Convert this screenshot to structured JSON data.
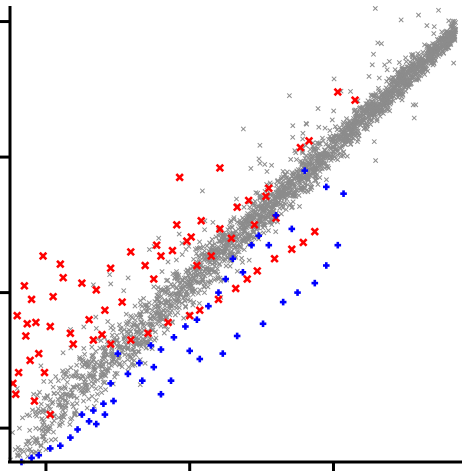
{
  "chart_data": {
    "type": "scatter",
    "title": "",
    "xlabel": "",
    "ylabel": "",
    "xlim": [
      0.0,
      3.13
    ],
    "ylim": [
      0.0,
      3.35
    ],
    "x_ticks": [
      0.25,
      1.25,
      2.25
    ],
    "y_ticks": [
      0.25,
      1.25,
      2.25,
      3.25
    ],
    "grid": false,
    "legend": "none",
    "colors": {
      "background": "#8c8c8c",
      "up": "#ff0000",
      "down": "#0000ff",
      "axis": "#000000"
    },
    "background_cloud": {
      "trend_slope": 1.0,
      "trend_intercept": 0.08,
      "x_range": [
        0.0,
        3.1
      ],
      "approx_points": 2600
    },
    "series": [
      {
        "marker": "x",
        "color": "#ff0000",
        "points": [
          [
            2.28,
            2.73
          ],
          [
            2.4,
            2.67
          ],
          [
            2.02,
            2.32
          ],
          [
            2.08,
            2.37
          ],
          [
            1.46,
            2.17
          ],
          [
            1.18,
            2.1
          ],
          [
            1.8,
            2.02
          ],
          [
            1.78,
            1.96
          ],
          [
            1.66,
            1.93
          ],
          [
            1.58,
            1.88
          ],
          [
            1.46,
            1.72
          ],
          [
            1.33,
            1.78
          ],
          [
            1.26,
            1.66
          ],
          [
            1.23,
            1.63
          ],
          [
            1.16,
            1.75
          ],
          [
            1.13,
            1.56
          ],
          [
            1.02,
            1.6
          ],
          [
            1.05,
            1.52
          ],
          [
            0.94,
            1.45
          ],
          [
            0.84,
            1.55
          ],
          [
            0.7,
            1.43
          ],
          [
            0.6,
            1.27
          ],
          [
            0.5,
            1.32
          ],
          [
            0.35,
            1.46
          ],
          [
            0.37,
            1.36
          ],
          [
            0.23,
            1.52
          ],
          [
            0.3,
            1.22
          ],
          [
            0.1,
            1.3
          ],
          [
            0.18,
            1.03
          ],
          [
            0.12,
            1.02
          ],
          [
            0.05,
            1.08
          ],
          [
            0.15,
            1.2
          ],
          [
            0.28,
            1.0
          ],
          [
            0.44,
            0.87
          ],
          [
            0.58,
            0.9
          ],
          [
            0.64,
            0.94
          ],
          [
            0.7,
            0.87
          ],
          [
            0.84,
            0.9
          ],
          [
            0.96,
            0.95
          ],
          [
            1.1,
            1.03
          ],
          [
            1.25,
            1.08
          ],
          [
            1.32,
            1.12
          ],
          [
            1.45,
            1.2
          ],
          [
            1.57,
            1.28
          ],
          [
            1.65,
            1.35
          ],
          [
            1.72,
            1.41
          ],
          [
            1.84,
            1.5
          ],
          [
            1.96,
            1.57
          ],
          [
            2.04,
            1.62
          ],
          [
            2.12,
            1.7
          ],
          [
            0.11,
            0.93
          ],
          [
            0.2,
            0.8
          ],
          [
            0.14,
            0.75
          ],
          [
            0.24,
            0.66
          ],
          [
            0.06,
            0.66
          ],
          [
            0.02,
            0.58
          ],
          [
            0.04,
            0.5
          ],
          [
            0.17,
            0.45
          ],
          [
            0.28,
            0.35
          ],
          [
            1.0,
            1.35
          ],
          [
            0.78,
            1.18
          ],
          [
            0.66,
            1.12
          ],
          [
            0.55,
            1.05
          ],
          [
            0.42,
            0.95
          ],
          [
            1.4,
            1.52
          ],
          [
            1.3,
            1.45
          ],
          [
            1.54,
            1.65
          ],
          [
            1.7,
            1.75
          ],
          [
            1.85,
            1.8
          ]
        ]
      },
      {
        "marker": "+",
        "color": "#0000ff",
        "points": [
          [
            2.05,
            2.15
          ],
          [
            2.2,
            2.03
          ],
          [
            2.32,
            1.98
          ],
          [
            1.85,
            1.82
          ],
          [
            1.96,
            1.72
          ],
          [
            1.73,
            1.67
          ],
          [
            1.68,
            1.6
          ],
          [
            1.8,
            1.6
          ],
          [
            1.55,
            1.5
          ],
          [
            1.5,
            1.35
          ],
          [
            1.62,
            1.4
          ],
          [
            1.45,
            1.25
          ],
          [
            1.38,
            1.15
          ],
          [
            1.3,
            1.05
          ],
          [
            1.22,
            1.0
          ],
          [
            1.14,
            0.92
          ],
          [
            1.05,
            0.83
          ],
          [
            0.98,
            0.86
          ],
          [
            0.9,
            0.73
          ],
          [
            0.75,
            0.8
          ],
          [
            0.82,
            0.65
          ],
          [
            0.7,
            0.58
          ],
          [
            0.65,
            0.43
          ],
          [
            0.58,
            0.38
          ],
          [
            0.55,
            0.3
          ],
          [
            0.47,
            0.24
          ],
          [
            0.42,
            0.18
          ],
          [
            0.35,
            0.12
          ],
          [
            0.28,
            0.1
          ],
          [
            0.2,
            0.05
          ],
          [
            0.15,
            0.03
          ],
          [
            0.08,
            0.0
          ],
          [
            0.6,
            0.28
          ],
          [
            0.5,
            0.35
          ],
          [
            1.12,
            0.6
          ],
          [
            1.05,
            0.5
          ],
          [
            1.32,
            0.76
          ],
          [
            1.48,
            0.8
          ],
          [
            1.58,
            0.93
          ],
          [
            1.76,
            1.02
          ],
          [
            1.9,
            1.18
          ],
          [
            2.0,
            1.25
          ],
          [
            2.12,
            1.32
          ],
          [
            2.2,
            1.45
          ],
          [
            2.28,
            1.6
          ],
          [
            1.25,
            0.82
          ],
          [
            1.0,
            0.7
          ],
          [
            0.92,
            0.6
          ],
          [
            0.72,
            0.45
          ],
          [
            0.66,
            0.35
          ]
        ]
      }
    ]
  }
}
